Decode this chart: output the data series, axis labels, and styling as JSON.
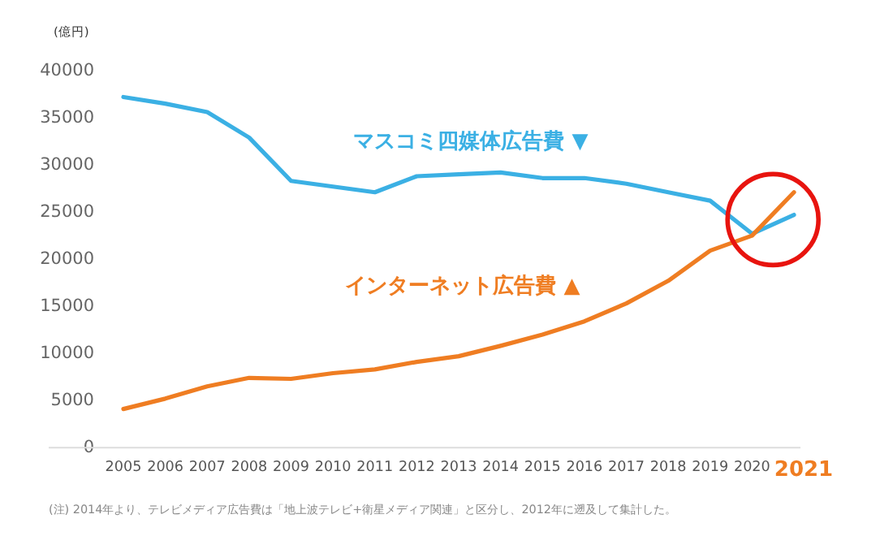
{
  "chart_data": {
    "type": "line",
    "ylabel": "(億円)",
    "categories": [
      "2005",
      "2006",
      "2007",
      "2008",
      "2009",
      "2010",
      "2011",
      "2012",
      "2013",
      "2014",
      "2015",
      "2016",
      "2017",
      "2018",
      "2019",
      "2020",
      "2021"
    ],
    "series": [
      {
        "name": "マスコミ四媒体広告費 ▼",
        "color": "#3bb0e4",
        "values": [
          37200,
          36500,
          35600,
          32900,
          28300,
          27700,
          27100,
          28800,
          29000,
          29200,
          28600,
          28600,
          28000,
          27100,
          26200,
          22700,
          24700
        ]
      },
      {
        "name": "インターネット広告費 ▲",
        "color": "#ef7d22",
        "values": [
          4100,
          5200,
          6500,
          7400,
          7300,
          7900,
          8300,
          9100,
          9700,
          10800,
          12000,
          13400,
          15300,
          17700,
          20900,
          22500,
          27100
        ]
      }
    ],
    "ylim": [
      0,
      40000
    ],
    "yticks": [
      0,
      5000,
      10000,
      15000,
      20000,
      25000,
      30000,
      35000,
      40000
    ],
    "grid": false,
    "marker": "none",
    "line_style": "solid",
    "annotations": [
      "(注) 2014年より、テレビメディア広告費は「地上波テレビ+衛星メディア関連」と区分し、2012年に遡及して集計した。"
    ]
  }
}
